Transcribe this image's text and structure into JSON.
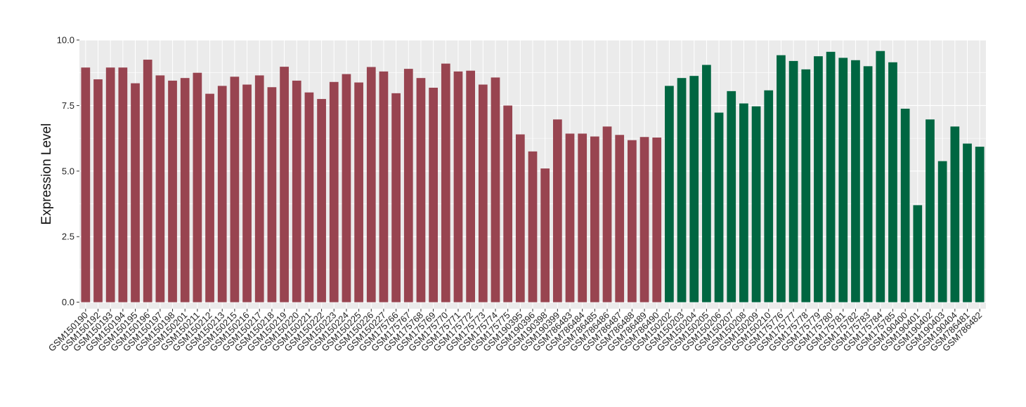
{
  "chart_data": {
    "type": "bar",
    "title": "",
    "xlabel": "",
    "ylabel": "Expression Level",
    "ylim": [
      -0.25,
      10.0
    ],
    "yticks": [
      0.0,
      2.5,
      5.0,
      7.5,
      10.0
    ],
    "ytick_labels": [
      "0.0",
      "2.5",
      "5.0",
      "7.5",
      "10.0"
    ],
    "grid": true,
    "colors": {
      "group1": "#984450",
      "group2": "#006641",
      "panel": "#ebebeb",
      "grid": "#ffffff"
    },
    "categories": [
      "GSM150190",
      "GSM150192",
      "GSM150193",
      "GSM150194",
      "GSM150195",
      "GSM150196",
      "GSM150197",
      "GSM150198",
      "GSM150201",
      "GSM150211",
      "GSM150212",
      "GSM150213",
      "GSM150215",
      "GSM150216",
      "GSM150217",
      "GSM150218",
      "GSM150219",
      "GSM150220",
      "GSM150221",
      "GSM150222",
      "GSM150223",
      "GSM150224",
      "GSM150225",
      "GSM150226",
      "GSM150227",
      "GSM175766",
      "GSM175767",
      "GSM175768",
      "GSM175769",
      "GSM175770",
      "GSM175771",
      "GSM175772",
      "GSM175773",
      "GSM175774",
      "GSM175775",
      "GSM190395",
      "GSM190396",
      "GSM190398",
      "GSM190399",
      "GSM786483",
      "GSM786484",
      "GSM786485",
      "GSM786486",
      "GSM786487",
      "GSM786488",
      "GSM786489",
      "GSM786490",
      "GSM150202",
      "GSM150203",
      "GSM150204",
      "GSM150205",
      "GSM150206",
      "GSM150207",
      "GSM150208",
      "GSM150209",
      "GSM150210",
      "GSM175776",
      "GSM175777",
      "GSM175778",
      "GSM175779",
      "GSM175780",
      "GSM175781",
      "GSM175782",
      "GSM175783",
      "GSM175784",
      "GSM175785",
      "GSM190400",
      "GSM190401",
      "GSM190402",
      "GSM190403",
      "GSM190404",
      "GSM786481",
      "GSM786482"
    ],
    "values": [
      8.95,
      8.5,
      8.95,
      8.95,
      8.35,
      9.25,
      8.65,
      8.45,
      8.55,
      8.75,
      7.95,
      8.25,
      8.6,
      8.3,
      8.65,
      8.2,
      8.98,
      8.45,
      8.0,
      7.75,
      8.4,
      8.7,
      8.38,
      8.97,
      8.8,
      7.97,
      8.9,
      8.55,
      8.18,
      9.1,
      8.8,
      8.83,
      8.3,
      8.57,
      7.5,
      6.4,
      5.75,
      5.1,
      6.97,
      6.43,
      6.43,
      6.32,
      6.7,
      6.38,
      6.18,
      6.3,
      6.28,
      8.25,
      8.55,
      8.63,
      9.05,
      7.23,
      8.05,
      7.58,
      7.47,
      8.08,
      9.42,
      9.2,
      8.88,
      9.38,
      9.55,
      9.32,
      9.23,
      9.0,
      9.58,
      9.15,
      7.38,
      3.7,
      6.97,
      5.38,
      6.7,
      6.05,
      5.93
    ],
    "group_sizes": [
      47,
      26
    ]
  }
}
